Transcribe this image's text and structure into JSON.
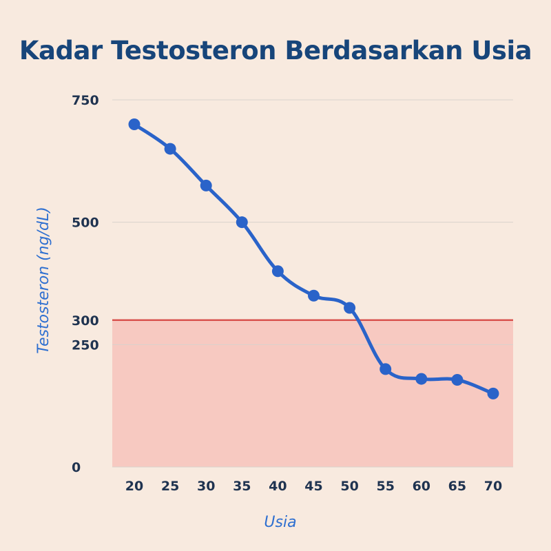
{
  "chart_data": {
    "type": "line",
    "title": "Kadar Testosteron Berdasarkan Usia",
    "xlabel": "Usia",
    "ylabel": "Testosteron (ng/dL)",
    "x": [
      20,
      25,
      30,
      35,
      40,
      45,
      50,
      55,
      60,
      65,
      70
    ],
    "y": [
      700,
      650,
      575,
      500,
      400,
      350,
      325,
      200,
      180,
      178,
      150
    ],
    "y_ticks": [
      0,
      250,
      300,
      500,
      750
    ],
    "ylim": [
      0,
      750
    ],
    "threshold": {
      "value": 300,
      "color": "#d9534f",
      "fill": "#f7c9c1"
    },
    "series_color": "#2a63c9",
    "grid": true
  }
}
